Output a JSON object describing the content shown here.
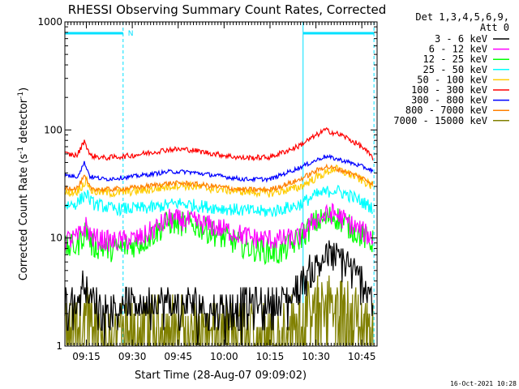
{
  "chart_data": {
    "type": "line",
    "title": "RHESSI Observing Summary Count Rates, Corrected",
    "xlabel": "Start Time (28-Aug-07 09:09:02)",
    "ylabel_main": "Corrected Count Rate (s",
    "ylabel_sup1": "-1",
    "ylabel_mid": " detector",
    "ylabel_sup2": "-1",
    "ylabel_end": ")",
    "yscale": "log",
    "ylim": [
      1,
      1000
    ],
    "xlim_minutes": [
      9.133,
      10.833
    ],
    "x_ticks": [
      {
        "label": "09:15",
        "t": 9.25
      },
      {
        "label": "09:30",
        "t": 9.5
      },
      {
        "label": "09:45",
        "t": 9.75
      },
      {
        "label": "10:00",
        "t": 10.0
      },
      {
        "label": "10:15",
        "t": 10.25
      },
      {
        "label": "10:30",
        "t": 10.5
      },
      {
        "label": "10:45",
        "t": 10.75
      }
    ],
    "y_ticks": [
      {
        "label": "1",
        "v": 1
      },
      {
        "label": "10",
        "v": 10
      },
      {
        "label": "100",
        "v": 100
      },
      {
        "label": "1000",
        "v": 1000
      }
    ],
    "legend_header": [
      "Det 1,3,4,5,6,9,",
      "Att 0"
    ],
    "flags": {
      "color": "#00e0ff",
      "night_marker": "N",
      "segments": [
        [
          9.133,
          9.45
        ],
        [
          10.43,
          10.816
        ]
      ],
      "boundaries": [
        9.133,
        9.45,
        10.43,
        10.816
      ]
    },
    "series": [
      {
        "name": "3 - 6 keV",
        "color": "#000000",
        "points": [
          [
            9.133,
            2.6
          ],
          [
            9.2,
            2.6
          ],
          [
            9.24,
            4.3
          ],
          [
            9.27,
            2.8
          ],
          [
            9.35,
            2.4
          ],
          [
            9.5,
            2.6
          ],
          [
            9.7,
            2.5
          ],
          [
            10.0,
            2.4
          ],
          [
            10.2,
            2.5
          ],
          [
            10.35,
            2.8
          ],
          [
            10.45,
            4.5
          ],
          [
            10.55,
            7
          ],
          [
            10.65,
            6.5
          ],
          [
            10.75,
            4
          ],
          [
            10.81,
            3.2
          ]
        ]
      },
      {
        "name": "6 - 12 keV",
        "color": "#ff00ff",
        "points": [
          [
            9.133,
            9.5
          ],
          [
            9.2,
            10
          ],
          [
            9.25,
            13
          ],
          [
            9.28,
            10
          ],
          [
            9.4,
            9.2
          ],
          [
            9.55,
            10
          ],
          [
            9.7,
            15
          ],
          [
            9.85,
            14
          ],
          [
            10.0,
            12
          ],
          [
            10.15,
            10
          ],
          [
            10.3,
            9.6
          ],
          [
            10.4,
            10
          ],
          [
            10.5,
            15
          ],
          [
            10.6,
            17
          ],
          [
            10.7,
            13
          ],
          [
            10.81,
            10
          ]
        ]
      },
      {
        "name": "12 - 25 keV",
        "color": "#00ff00",
        "points": [
          [
            9.133,
            8
          ],
          [
            9.2,
            8.5
          ],
          [
            9.25,
            12
          ],
          [
            9.28,
            8.5
          ],
          [
            9.4,
            7.8
          ],
          [
            9.55,
            9
          ],
          [
            9.7,
            14
          ],
          [
            9.85,
            13
          ],
          [
            10.0,
            10
          ],
          [
            10.15,
            8
          ],
          [
            10.3,
            7.2
          ],
          [
            10.4,
            9.5
          ],
          [
            10.5,
            14
          ],
          [
            10.6,
            16
          ],
          [
            10.7,
            12
          ],
          [
            10.81,
            9
          ]
        ]
      },
      {
        "name": "25 - 50 keV",
        "color": "#00ffff",
        "points": [
          [
            9.133,
            20
          ],
          [
            9.2,
            21
          ],
          [
            9.25,
            26
          ],
          [
            9.28,
            21
          ],
          [
            9.4,
            18.5
          ],
          [
            9.6,
            19
          ],
          [
            9.75,
            21
          ],
          [
            9.9,
            19.5
          ],
          [
            10.1,
            18
          ],
          [
            10.25,
            17.5
          ],
          [
            10.4,
            20
          ],
          [
            10.5,
            25
          ],
          [
            10.6,
            28
          ],
          [
            10.7,
            24
          ],
          [
            10.81,
            19
          ]
        ]
      },
      {
        "name": "50 - 100 keV",
        "color": "#ffcc00",
        "points": [
          [
            9.133,
            26
          ],
          [
            9.2,
            27
          ],
          [
            9.25,
            34
          ],
          [
            9.28,
            27
          ],
          [
            9.4,
            26
          ],
          [
            9.6,
            28
          ],
          [
            9.75,
            31
          ],
          [
            9.9,
            29
          ],
          [
            10.1,
            27
          ],
          [
            10.25,
            26
          ],
          [
            10.4,
            29
          ],
          [
            10.5,
            36
          ],
          [
            10.6,
            44
          ],
          [
            10.7,
            38
          ],
          [
            10.81,
            30
          ]
        ]
      },
      {
        "name": "100 - 300 keV",
        "color": "#ff0000",
        "points": [
          [
            9.133,
            60
          ],
          [
            9.2,
            58
          ],
          [
            9.24,
            80
          ],
          [
            9.27,
            58
          ],
          [
            9.35,
            55
          ],
          [
            9.5,
            58
          ],
          [
            9.7,
            66
          ],
          [
            9.8,
            66
          ],
          [
            9.95,
            60
          ],
          [
            10.1,
            55
          ],
          [
            10.25,
            56
          ],
          [
            10.4,
            70
          ],
          [
            10.55,
            100
          ],
          [
            10.65,
            88
          ],
          [
            10.75,
            70
          ],
          [
            10.81,
            55
          ]
        ]
      },
      {
        "name": "300 - 800 keV",
        "color": "#0000ff",
        "points": [
          [
            9.133,
            38
          ],
          [
            9.2,
            37
          ],
          [
            9.24,
            50
          ],
          [
            9.27,
            37
          ],
          [
            9.35,
            35
          ],
          [
            9.5,
            37
          ],
          [
            9.7,
            41
          ],
          [
            9.8,
            41
          ],
          [
            9.95,
            38
          ],
          [
            10.1,
            35
          ],
          [
            10.25,
            35
          ],
          [
            10.4,
            44
          ],
          [
            10.55,
            57
          ],
          [
            10.65,
            52
          ],
          [
            10.75,
            46
          ],
          [
            10.81,
            42
          ]
        ]
      },
      {
        "name": "800 - 7000 keV",
        "color": "#ff8000",
        "points": [
          [
            9.133,
            29
          ],
          [
            9.2,
            29
          ],
          [
            9.24,
            37
          ],
          [
            9.27,
            29
          ],
          [
            9.35,
            28
          ],
          [
            9.5,
            29
          ],
          [
            9.7,
            32
          ],
          [
            9.8,
            32
          ],
          [
            9.95,
            30
          ],
          [
            10.1,
            28
          ],
          [
            10.25,
            28
          ],
          [
            10.4,
            34
          ],
          [
            10.55,
            46
          ],
          [
            10.65,
            42
          ],
          [
            10.75,
            36
          ],
          [
            10.81,
            32
          ]
        ]
      },
      {
        "name": "7000 - 15000 keV",
        "color": "#808000",
        "points": [
          [
            9.133,
            1.5
          ],
          [
            9.2,
            1.6
          ],
          [
            9.24,
            2.4
          ],
          [
            9.3,
            1.6
          ],
          [
            9.5,
            1.5
          ],
          [
            9.7,
            1.7
          ],
          [
            10.0,
            1.5
          ],
          [
            10.3,
            1.6
          ],
          [
            10.45,
            2.2
          ],
          [
            10.55,
            2.8
          ],
          [
            10.65,
            2.5
          ],
          [
            10.75,
            1.9
          ],
          [
            10.81,
            1.6
          ]
        ]
      }
    ]
  },
  "footer_timestamp": "16-Oct-2021 10:28"
}
